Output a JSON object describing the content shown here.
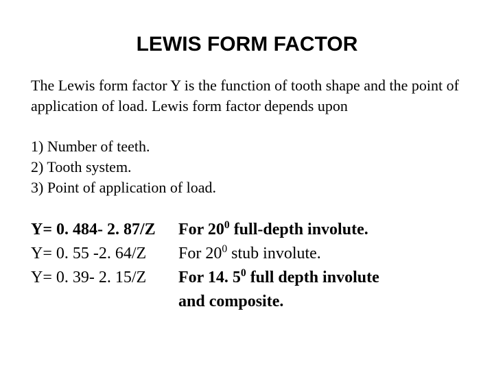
{
  "title": "LEWIS FORM FACTOR",
  "intro": "The Lewis form factor Y is the function of tooth shape and the point of application of load. Lewis form factor depends upon",
  "list": {
    "item1": "1) Number of teeth.",
    "item2": "2) Tooth system.",
    "item3": "3) Point of application of load."
  },
  "formulas": {
    "f1": {
      "lhs": "Y= 0. 484- 2. 87/Z",
      "rhs_pre": " For 20",
      "rhs_sup": "0",
      "rhs_post": "  full-depth involute."
    },
    "f2": {
      "lhs": "Y= 0. 55 -2. 64/Z",
      "rhs_pre": " For 20",
      "rhs_sup": "0",
      "rhs_post": " stub involute."
    },
    "f3": {
      "lhs": "Y= 0. 39- 2. 15/Z",
      "rhs_pre": " For 14. 5",
      "rhs_sup": "0",
      "rhs_post": " full depth involute"
    },
    "f3_cont": "and composite."
  },
  "style": {
    "background_color": "#ffffff",
    "text_color": "#000000",
    "title_font": "Arial",
    "body_font": "Times New Roman",
    "title_fontsize": 30,
    "body_fontsize": 22,
    "formula_fontsize": 24
  }
}
